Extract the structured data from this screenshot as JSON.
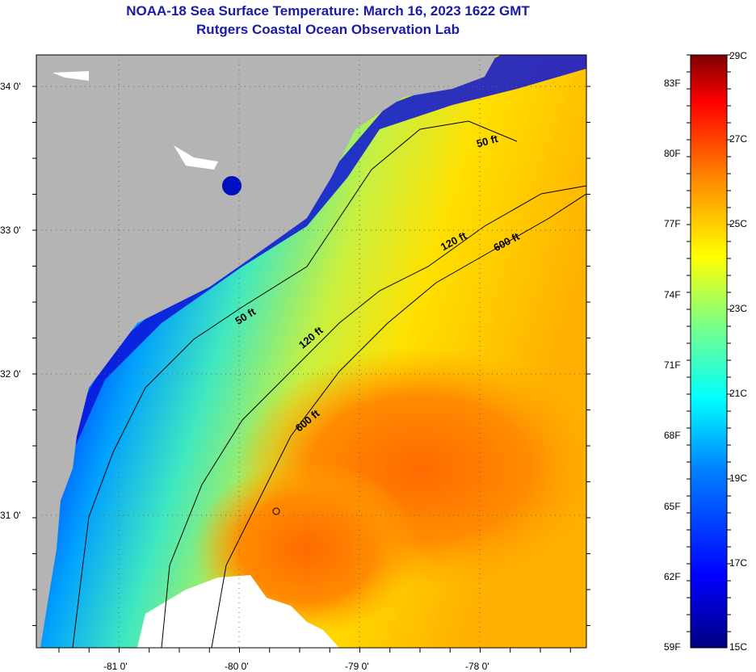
{
  "header": {
    "title": "NOAA-18 Sea Surface Temperature:  March 16, 2023 1622 GMT",
    "subtitle": "Rutgers Coastal Ocean Observation Lab"
  },
  "map": {
    "lat_labels": [
      "34 0'",
      "33 0'",
      "32 0'",
      "31 0'"
    ],
    "lon_labels": [
      "-81 0'",
      "-80 0'",
      "-79 0'",
      "-78 0'"
    ],
    "contour_labels": [
      "50 ft",
      "120 ft",
      "600 ft",
      "50 ft",
      "120 ft",
      "600 ft"
    ],
    "colors": {
      "land": "#b4b4b4",
      "cloud": "#ffffff",
      "frame": "#000000"
    }
  },
  "colorbar": {
    "fahrenheit": [
      "83F",
      "80F",
      "77F",
      "74F",
      "71F",
      "68F",
      "65F",
      "62F",
      "59F"
    ],
    "celsius": [
      "29C",
      "27C",
      "25C",
      "23C",
      "21C",
      "19C",
      "17C",
      "15C"
    ],
    "colors": [
      "#00007f",
      "#0000ff",
      "#0080ff",
      "#00ffff",
      "#80ff80",
      "#ffff00",
      "#ff8000",
      "#ff0000",
      "#7f0000"
    ]
  }
}
